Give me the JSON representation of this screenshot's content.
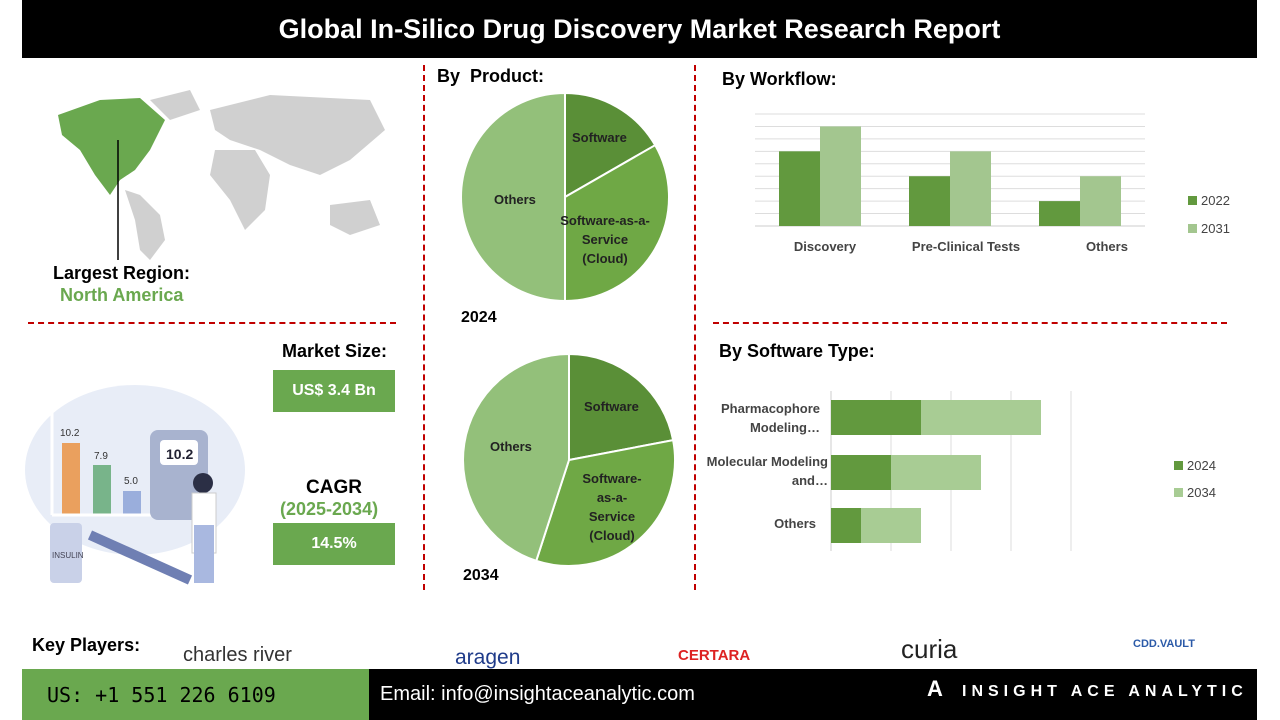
{
  "title": "Global In-Silico Drug Discovery Market Research Report",
  "region": {
    "label": "Largest Region:",
    "value": "North America"
  },
  "market_size": {
    "label": "Market Size:",
    "value": "US$ 3.4 Bn"
  },
  "cagr": {
    "label": "CAGR",
    "period": "(2025-2034)",
    "value": "14.5%"
  },
  "illustration": {
    "bars": [
      "10.2",
      "7.9",
      "5.0"
    ],
    "meter": "10.2",
    "vial": "INSULIN"
  },
  "colors": {
    "dark_green": "#5f9a3c",
    "light_green": "#a3c98e",
    "mid_green": "#6aa84f",
    "divider": "#c00000"
  },
  "chart_data": [
    {
      "type": "pie",
      "title": "By  Product:",
      "year_label": "2024",
      "slices": [
        {
          "label": "Software",
          "value": 16.7,
          "color": "#5a8f37"
        },
        {
          "label": "Software-as-a-Service (Cloud)",
          "value": 33.3,
          "color": "#6fa845"
        },
        {
          "label": "Others",
          "value": 50,
          "color": "#93c07a"
        }
      ]
    },
    {
      "type": "pie",
      "year_label": "2034",
      "slices": [
        {
          "label": "Software",
          "value": 22,
          "color": "#5a8f37"
        },
        {
          "label": "Software-as-a-Service (Cloud)",
          "value": 33,
          "color": "#6fa845"
        },
        {
          "label": "Others",
          "value": 45,
          "color": "#93c07a"
        }
      ]
    },
    {
      "type": "bar",
      "title": "By Workflow:",
      "categories": [
        "Discovery",
        "Pre-Clinical Tests",
        "Others"
      ],
      "series": [
        {
          "name": "2022",
          "values": [
            6,
            4,
            2
          ],
          "color": "#62993e"
        },
        {
          "name": "2031",
          "values": [
            8,
            6,
            4
          ],
          "color": "#a3c68f"
        }
      ],
      "ylim": [
        0,
        9
      ],
      "grid": true,
      "legend": "right"
    },
    {
      "type": "bar",
      "orientation": "horizontal",
      "stacked": true,
      "title": "By Software Type:",
      "categories": [
        "Pharmacophore Modeling…",
        "Molecular Modeling and…",
        "Others"
      ],
      "series": [
        {
          "name": "2024",
          "values": [
            1.5,
            1.0,
            0.5
          ],
          "color": "#62993e"
        },
        {
          "name": "2034",
          "values": [
            2.0,
            1.5,
            1.0
          ],
          "color": "#a8cc94"
        }
      ],
      "xlim": [
        0,
        4
      ],
      "grid": true,
      "legend": "right"
    }
  ],
  "key_players": {
    "label": "Key Players:",
    "logos": [
      "charles river",
      "aragen",
      "CERTARA",
      "curia",
      "CDD.VAULT"
    ]
  },
  "footer": {
    "phone": "US: +1 551 226 6109",
    "email": "Email: info@insightaceanalytic.com",
    "brand": "INSIGHT ACE ANALYTIC"
  }
}
